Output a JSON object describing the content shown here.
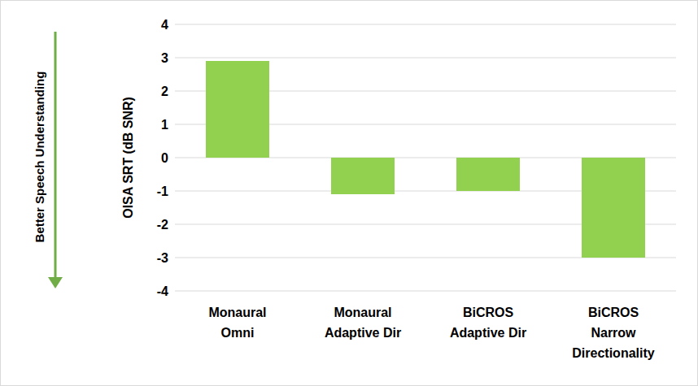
{
  "chart_data": {
    "type": "bar",
    "categories": [
      "Monaural Omni",
      "Monaural Adaptive Dir",
      "BiCROS Adaptive Dir",
      "BiCROS Narrow Directionality"
    ],
    "values": [
      2.9,
      -1.1,
      -1.0,
      -3.0
    ],
    "color": "#92d050",
    "ylim": [
      -4,
      4
    ],
    "yticks": [
      -4,
      -3,
      -2,
      -1,
      0,
      1,
      2,
      3,
      4
    ],
    "grid": true,
    "ylabel": "OISA SRT (dB SNR)",
    "annotations": [
      "Better Speech Understanding"
    ]
  }
}
